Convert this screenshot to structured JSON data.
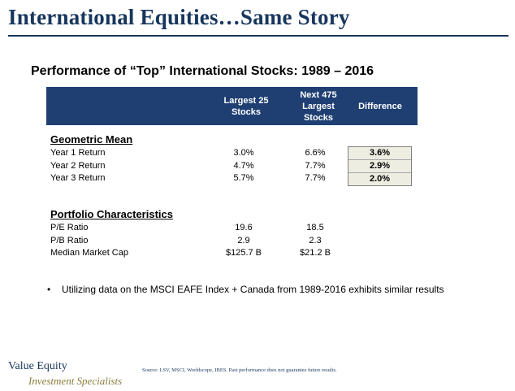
{
  "slide": {
    "title": "International Equities…Same Story",
    "subtitle": "Performance of “Top” International Stocks: 1989 – 2016"
  },
  "table": {
    "header": {
      "col1_line1": "Largest 25",
      "col1_line2": "Stocks",
      "col2_line1": "Next 475",
      "col2_line2": "Largest",
      "col2_line3": "Stocks",
      "col3": "Difference"
    },
    "geometric_mean": {
      "heading": "Geometric Mean",
      "rows": [
        {
          "label": "Year 1 Return",
          "largest": "3.0%",
          "next": "6.6%",
          "diff": "3.6%"
        },
        {
          "label": "Year 2 Return",
          "largest": "4.7%",
          "next": "7.7%",
          "diff": "2.9%"
        },
        {
          "label": "Year 3 Return",
          "largest": "5.7%",
          "next": "7.7%",
          "diff": "2.0%"
        }
      ]
    },
    "portfolio": {
      "heading": "Portfolio Characteristics",
      "rows": [
        {
          "label": "P/E Ratio",
          "largest": "19.6",
          "next": "18.5"
        },
        {
          "label": "P/B Ratio",
          "largest": "2.9",
          "next": "2.3"
        },
        {
          "label": "Median Market Cap",
          "largest": "$125.7  B",
          "next": "$21.2  B"
        }
      ]
    }
  },
  "bullet": {
    "marker": "•",
    "text": "Utilizing data on the MSCI EAFE Index + Canada from 1989-2016 exhibits similar results"
  },
  "footer": {
    "logo_line1": "Value Equity",
    "logo_line2": "Investment Specialists",
    "source": "Source: LSV, MSCI, Worldscope, IBES. Past performance does not guarantee future results."
  },
  "colors": {
    "title": "#17365d",
    "header_band": "#1f3f73",
    "diff_fill": "#eeede1",
    "logo_accent": "#8a7d3a"
  }
}
